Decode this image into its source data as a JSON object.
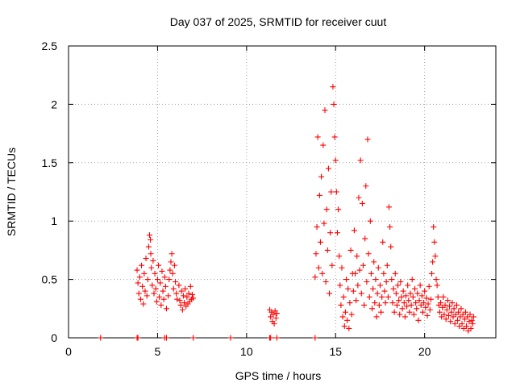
{
  "chart_data": {
    "type": "scatter",
    "title": "Day 037 of 2025, SRMTID for receiver cuut",
    "xlabel": "GPS time / hours",
    "ylabel": "SRMTID / TECUs",
    "xlim": [
      0,
      24
    ],
    "ylim": [
      0,
      2.5
    ],
    "xticks": [
      0,
      5,
      10,
      15,
      20
    ],
    "xtick_labels": [
      "0",
      "5",
      "10",
      "15",
      "20"
    ],
    "yticks": [
      0,
      0.5,
      1,
      1.5,
      2,
      2.5
    ],
    "ytick_labels": [
      "0",
      "0.5",
      "1",
      "1.5",
      "2",
      "2.5"
    ],
    "grid": true,
    "marker": "+",
    "marker_color": "#ff0000",
    "series": [
      {
        "name": "SRMTID",
        "points": [
          [
            1.8,
            0.0
          ],
          [
            3.85,
            0.0
          ],
          [
            3.9,
            0.0
          ],
          [
            5.4,
            0.0
          ],
          [
            5.5,
            0.0
          ],
          [
            7.0,
            0.0
          ],
          [
            9.1,
            0.0
          ],
          [
            11.3,
            0.0
          ],
          [
            11.35,
            0.0
          ],
          [
            11.7,
            0.0
          ],
          [
            13.85,
            0.0
          ],
          [
            3.85,
            0.58
          ],
          [
            3.9,
            0.47
          ],
          [
            3.95,
            0.38
          ],
          [
            4.0,
            0.52
          ],
          [
            4.05,
            0.33
          ],
          [
            4.1,
            0.62
          ],
          [
            4.15,
            0.44
          ],
          [
            4.2,
            0.29
          ],
          [
            4.25,
            0.55
          ],
          [
            4.3,
            0.4
          ],
          [
            4.35,
            0.68
          ],
          [
            4.4,
            0.36
          ],
          [
            4.45,
            0.5
          ],
          [
            4.5,
            0.78
          ],
          [
            4.55,
            0.88
          ],
          [
            4.6,
            0.84
          ],
          [
            4.62,
            0.72
          ],
          [
            4.65,
            0.6
          ],
          [
            4.7,
            0.45
          ],
          [
            4.75,
            0.66
          ],
          [
            4.8,
            0.38
          ],
          [
            4.85,
            0.55
          ],
          [
            4.9,
            0.42
          ],
          [
            4.95,
            0.31
          ],
          [
            5.0,
            0.5
          ],
          [
            5.05,
            0.62
          ],
          [
            5.1,
            0.35
          ],
          [
            5.15,
            0.47
          ],
          [
            5.2,
            0.28
          ],
          [
            5.25,
            0.57
          ],
          [
            5.3,
            0.4
          ],
          [
            5.35,
            0.33
          ],
          [
            5.4,
            0.52
          ],
          [
            5.45,
            0.44
          ],
          [
            5.5,
            0.25
          ],
          [
            5.6,
            0.36
          ],
          [
            5.65,
            0.5
          ],
          [
            5.7,
            0.58
          ],
          [
            5.75,
            0.65
          ],
          [
            5.8,
            0.72
          ],
          [
            5.85,
            0.55
          ],
          [
            5.9,
            0.42
          ],
          [
            5.95,
            0.62
          ],
          [
            6.0,
            0.48
          ],
          [
            6.05,
            0.38
          ],
          [
            6.1,
            0.33
          ],
          [
            6.2,
            0.45
          ],
          [
            6.25,
            0.32
          ],
          [
            6.3,
            0.28
          ],
          [
            6.35,
            0.4
          ],
          [
            6.4,
            0.24
          ],
          [
            6.45,
            0.36
          ],
          [
            6.5,
            0.3
          ],
          [
            6.55,
            0.42
          ],
          [
            6.6,
            0.27
          ],
          [
            6.65,
            0.35
          ],
          [
            6.7,
            0.29
          ],
          [
            6.75,
            0.38
          ],
          [
            6.8,
            0.31
          ],
          [
            6.85,
            0.44
          ],
          [
            6.9,
            0.33
          ],
          [
            6.95,
            0.37
          ],
          [
            7.0,
            0.34
          ],
          [
            11.3,
            0.24
          ],
          [
            11.35,
            0.18
          ],
          [
            11.4,
            0.22
          ],
          [
            11.45,
            0.14
          ],
          [
            11.5,
            0.2
          ],
          [
            11.55,
            0.12
          ],
          [
            11.6,
            0.23
          ],
          [
            11.65,
            0.17
          ],
          [
            11.7,
            0.21
          ],
          [
            13.85,
            0.52
          ],
          [
            13.9,
            0.72
          ],
          [
            13.95,
            0.95
          ],
          [
            14.0,
            1.72
          ],
          [
            14.05,
            0.6
          ],
          [
            14.1,
            1.22
          ],
          [
            14.15,
            0.82
          ],
          [
            14.2,
            1.38
          ],
          [
            14.25,
            0.55
          ],
          [
            14.3,
            1.65
          ],
          [
            14.35,
            0.98
          ],
          [
            14.4,
            1.95
          ],
          [
            14.45,
            0.48
          ],
          [
            14.5,
            1.1
          ],
          [
            14.55,
            0.75
          ],
          [
            14.6,
            1.45
          ],
          [
            14.65,
            0.38
          ],
          [
            14.7,
            0.9
          ],
          [
            14.75,
            1.25
          ],
          [
            14.8,
            0.62
          ],
          [
            14.85,
            2.15
          ],
          [
            14.9,
            2.0
          ],
          [
            14.95,
            1.72
          ],
          [
            15.0,
            1.52
          ],
          [
            15.05,
            1.25
          ],
          [
            15.1,
            0.9
          ],
          [
            15.15,
            1.1
          ],
          [
            15.2,
            0.7
          ],
          [
            15.25,
            0.45
          ],
          [
            15.3,
            0.28
          ],
          [
            15.35,
            0.6
          ],
          [
            15.4,
            0.18
          ],
          [
            15.45,
            0.35
          ],
          [
            15.5,
            0.1
          ],
          [
            15.55,
            0.22
          ],
          [
            15.6,
            0.5
          ],
          [
            15.65,
            0.15
          ],
          [
            15.7,
            0.42
          ],
          [
            15.75,
            0.08
          ],
          [
            15.8,
            0.3
          ],
          [
            15.85,
            0.75
          ],
          [
            15.9,
            0.2
          ],
          [
            15.95,
            0.55
          ],
          [
            16.0,
            0.4
          ],
          [
            16.05,
            0.92
          ],
          [
            16.1,
            0.55
          ],
          [
            16.15,
            0.32
          ],
          [
            16.2,
            0.7
          ],
          [
            16.25,
            0.45
          ],
          [
            16.3,
            1.2
          ],
          [
            16.35,
            0.58
          ],
          [
            16.4,
            1.52
          ],
          [
            16.45,
            0.38
          ],
          [
            16.5,
            1.15
          ],
          [
            16.55,
            0.62
          ],
          [
            16.6,
            0.28
          ],
          [
            16.65,
            0.85
          ],
          [
            16.7,
            1.3
          ],
          [
            16.75,
            0.48
          ],
          [
            16.8,
            1.7
          ],
          [
            16.85,
            0.72
          ],
          [
            16.9,
            0.35
          ],
          [
            16.95,
            1.0
          ],
          [
            17.0,
            0.55
          ],
          [
            17.05,
            0.25
          ],
          [
            17.1,
            0.42
          ],
          [
            17.15,
            0.65
          ],
          [
            17.2,
            0.3
          ],
          [
            17.25,
            0.5
          ],
          [
            17.3,
            0.18
          ],
          [
            17.35,
            0.38
          ],
          [
            17.4,
            0.6
          ],
          [
            17.45,
            0.28
          ],
          [
            17.5,
            0.45
          ],
          [
            17.55,
            0.22
          ],
          [
            17.6,
            0.35
          ],
          [
            17.65,
            0.82
          ],
          [
            17.7,
            0.55
          ],
          [
            17.75,
            0.4
          ],
          [
            17.8,
            0.3
          ],
          [
            17.85,
            0.48
          ],
          [
            17.9,
            0.62
          ],
          [
            17.95,
            0.35
          ],
          [
            18.0,
            1.12
          ],
          [
            18.05,
            0.95
          ],
          [
            18.1,
            0.78
          ],
          [
            18.15,
            0.5
          ],
          [
            18.2,
            0.3
          ],
          [
            18.25,
            0.42
          ],
          [
            18.3,
            0.22
          ],
          [
            18.35,
            0.55
          ],
          [
            18.4,
            0.38
          ],
          [
            18.45,
            0.28
          ],
          [
            18.5,
            0.45
          ],
          [
            18.55,
            0.32
          ],
          [
            18.6,
            0.2
          ],
          [
            18.65,
            0.48
          ],
          [
            18.7,
            0.35
          ],
          [
            18.75,
            0.25
          ],
          [
            18.8,
            0.4
          ],
          [
            18.85,
            0.3
          ],
          [
            18.9,
            0.18
          ],
          [
            18.95,
            0.36
          ],
          [
            19.0,
            0.27
          ],
          [
            19.05,
            0.45
          ],
          [
            19.1,
            0.32
          ],
          [
            19.15,
            0.22
          ],
          [
            19.2,
            0.38
          ],
          [
            19.25,
            0.28
          ],
          [
            19.3,
            0.5
          ],
          [
            19.35,
            0.35
          ],
          [
            19.4,
            0.2
          ],
          [
            19.45,
            0.42
          ],
          [
            19.5,
            0.3
          ],
          [
            19.55,
            0.25
          ],
          [
            19.6,
            0.38
          ],
          [
            19.65,
            0.15
          ],
          [
            19.7,
            0.32
          ],
          [
            19.75,
            0.45
          ],
          [
            19.8,
            0.28
          ],
          [
            19.85,
            0.36
          ],
          [
            19.9,
            0.22
          ],
          [
            19.95,
            0.3
          ],
          [
            20.0,
            0.4
          ],
          [
            20.05,
            0.26
          ],
          [
            20.1,
            0.34
          ],
          [
            20.15,
            0.19
          ],
          [
            20.2,
            0.29
          ],
          [
            20.25,
            0.44
          ],
          [
            20.3,
            0.24
          ],
          [
            20.35,
            0.33
          ],
          [
            20.4,
            0.55
          ],
          [
            20.45,
            0.65
          ],
          [
            20.5,
            0.95
          ],
          [
            20.55,
            0.82
          ],
          [
            20.6,
            0.7
          ],
          [
            20.65,
            0.5
          ],
          [
            20.7,
            0.45
          ],
          [
            20.75,
            0.35
          ],
          [
            20.8,
            0.28
          ],
          [
            20.85,
            0.22
          ],
          [
            20.9,
            0.3
          ],
          [
            20.95,
            0.18
          ],
          [
            21.0,
            0.26
          ],
          [
            21.05,
            0.35
          ],
          [
            21.1,
            0.2
          ],
          [
            21.15,
            0.28
          ],
          [
            21.2,
            0.16
          ],
          [
            21.25,
            0.24
          ],
          [
            21.3,
            0.32
          ],
          [
            21.35,
            0.19
          ],
          [
            21.4,
            0.27
          ],
          [
            21.45,
            0.14
          ],
          [
            21.5,
            0.22
          ],
          [
            21.55,
            0.3
          ],
          [
            21.6,
            0.18
          ],
          [
            21.65,
            0.25
          ],
          [
            21.7,
            0.12
          ],
          [
            21.75,
            0.2
          ],
          [
            21.8,
            0.28
          ],
          [
            21.85,
            0.15
          ],
          [
            21.9,
            0.22
          ],
          [
            21.95,
            0.1
          ],
          [
            22.0,
            0.18
          ],
          [
            22.05,
            0.25
          ],
          [
            22.1,
            0.12
          ],
          [
            22.15,
            0.2
          ],
          [
            22.2,
            0.08
          ],
          [
            22.25,
            0.16
          ],
          [
            22.3,
            0.22
          ],
          [
            22.35,
            0.1
          ],
          [
            22.4,
            0.18
          ],
          [
            22.45,
            0.06
          ],
          [
            22.5,
            0.14
          ],
          [
            22.55,
            0.2
          ],
          [
            22.6,
            0.08
          ],
          [
            22.65,
            0.15
          ],
          [
            22.7,
            0.12
          ],
          [
            22.75,
            0.18
          ]
        ]
      }
    ]
  }
}
